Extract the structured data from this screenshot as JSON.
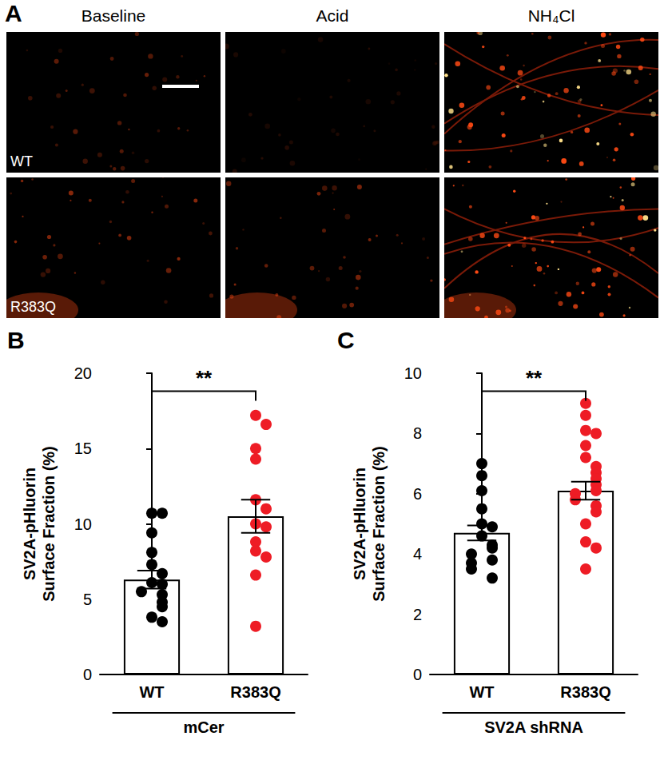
{
  "image_panel": {
    "title": "A",
    "columns": [
      "Baseline",
      "Acid",
      "NH₄Cl"
    ],
    "rows": [
      "WT",
      "R383Q"
    ]
  },
  "chart_data": [
    {
      "type": "bar",
      "title": "B",
      "x_label": "mCer",
      "y_label": "SV2A-pHluorin\nSurface Fraction (%)",
      "categories": [
        "WT",
        "R383Q"
      ],
      "values": [
        6.3,
        10.5
      ],
      "errors": [
        0.6,
        1.1
      ],
      "points": [
        [
          10.7,
          10.7,
          9.4,
          8.1,
          7.3,
          6.7,
          6.1,
          6.0,
          5.5,
          5.3,
          4.8,
          4.5,
          3.8,
          3.5
        ],
        [
          17.2,
          16.6,
          15.0,
          14.3,
          11.6,
          11.0,
          10.0,
          9.8,
          8.8,
          8.2,
          7.8,
          6.6,
          3.2
        ]
      ],
      "colors": [
        "#000000",
        "#ee1c25"
      ],
      "ylim": [
        0,
        20
      ],
      "yticks": [
        0,
        5,
        10,
        15,
        20
      ],
      "annotations": [
        "**"
      ]
    },
    {
      "type": "bar",
      "title": "C",
      "x_label": "SV2A shRNA",
      "y_label": "SV2A-pHluorin\nSurface Fraction (%)",
      "categories": [
        "WT",
        "R383Q"
      ],
      "values": [
        4.7,
        6.1
      ],
      "errors": [
        0.25,
        0.3
      ],
      "points": [
        [
          7.0,
          6.6,
          6.1,
          5.5,
          5.0,
          4.9,
          4.6,
          4.3,
          4.2,
          4.0,
          3.8,
          3.7,
          3.5,
          3.2
        ],
        [
          9.0,
          8.6,
          8.1,
          8.0,
          7.6,
          7.2,
          6.9,
          6.7,
          6.5,
          6.3,
          6.1,
          6.0,
          5.8,
          5.6,
          5.4,
          5.0,
          4.4,
          4.2,
          3.5
        ]
      ],
      "colors": [
        "#000000",
        "#ee1c25"
      ],
      "ylim": [
        0,
        10
      ],
      "yticks": [
        0,
        2,
        4,
        6,
        8,
        10
      ],
      "annotations": [
        "**"
      ]
    }
  ]
}
